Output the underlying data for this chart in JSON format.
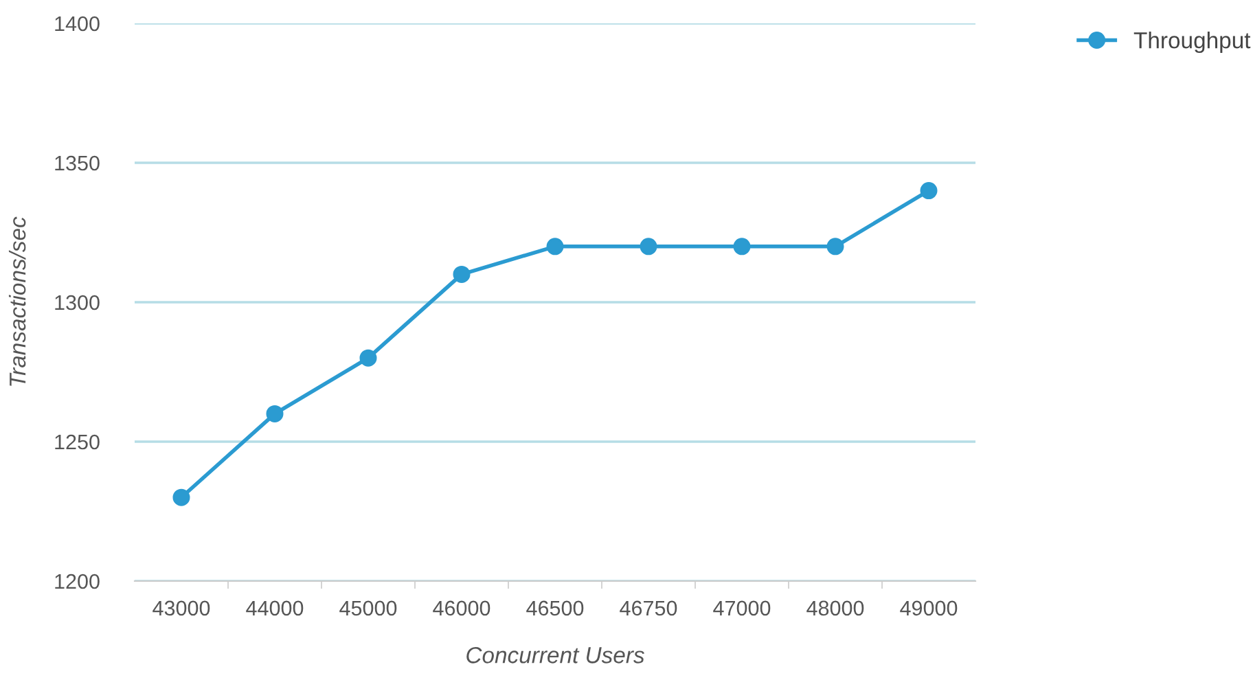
{
  "chart_data": {
    "type": "line",
    "xlabel": "Concurrent Users",
    "ylabel": "Transactions/sec",
    "categories": [
      "43000",
      "44000",
      "45000",
      "46000",
      "46500",
      "46750",
      "47000",
      "48000",
      "49000"
    ],
    "series": [
      {
        "name": "Throughput",
        "color": "#2b9bd1",
        "values": [
          1230,
          1260,
          1280,
          1310,
          1320,
          1320,
          1320,
          1320,
          1340
        ]
      }
    ],
    "ylim": [
      1200,
      1400
    ],
    "yticks": [
      1200,
      1250,
      1300,
      1350,
      1400
    ],
    "grid": "y",
    "legend": "top right",
    "marker": "circle",
    "line_style": "solid"
  }
}
